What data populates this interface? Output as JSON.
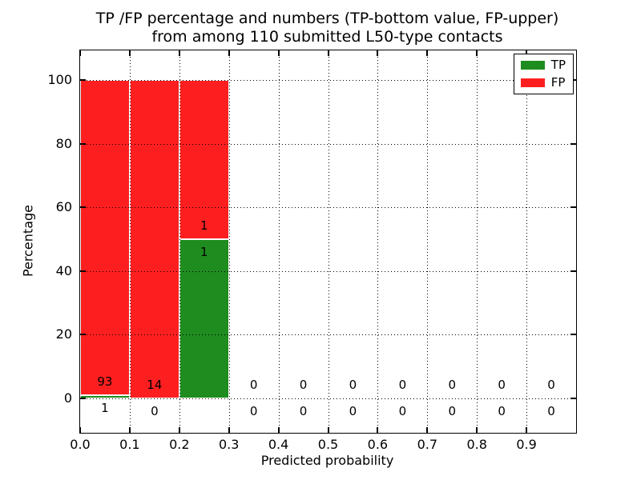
{
  "chart_data": {
    "type": "bar",
    "stacked": true,
    "title_line1": "TP /FP percentage and numbers (TP-bottom value, FP-upper)",
    "title_line2": "from among 110 submitted L50-type contacts",
    "xlabel": "Predicted probability",
    "ylabel": "Percentage",
    "xlim": [
      0,
      1
    ],
    "ylim": [
      -11,
      109
    ],
    "grid": true,
    "grid_style": "dotted",
    "legend_position": "upper right",
    "bin_width": 0.1,
    "total_submitted": 110,
    "series": [
      {
        "name": "TP",
        "color": "#1E8C1E"
      },
      {
        "name": "FP",
        "color": "#FD1F1F"
      }
    ],
    "yticks": {
      "values": [
        0,
        20,
        40,
        60,
        80,
        100
      ],
      "labels": [
        "0",
        "20",
        "40",
        "60",
        "80",
        "100"
      ]
    },
    "xticks": {
      "values": [
        0,
        0.1,
        0.2,
        0.3,
        0.4,
        0.5,
        0.6,
        0.7,
        0.8,
        0.9
      ],
      "labels": [
        "0.0",
        "0.1",
        "0.2",
        "0.3",
        "0.4",
        "0.5",
        "0.6",
        "0.7",
        "0.8",
        "0.9"
      ]
    },
    "bins": [
      {
        "x0": 0.0,
        "x1": 0.1,
        "tp_count": 1,
        "fp_count": 93,
        "tp_pct": 1.06,
        "fp_pct": 98.94
      },
      {
        "x0": 0.1,
        "x1": 0.2,
        "tp_count": 0,
        "fp_count": 14,
        "tp_pct": 0,
        "fp_pct": 100
      },
      {
        "x0": 0.2,
        "x1": 0.3,
        "tp_count": 1,
        "fp_count": 1,
        "tp_pct": 50,
        "fp_pct": 50
      },
      {
        "x0": 0.3,
        "x1": 0.4,
        "tp_count": 0,
        "fp_count": 0,
        "tp_pct": 0,
        "fp_pct": 0
      },
      {
        "x0": 0.4,
        "x1": 0.5,
        "tp_count": 0,
        "fp_count": 0,
        "tp_pct": 0,
        "fp_pct": 0
      },
      {
        "x0": 0.5,
        "x1": 0.6,
        "tp_count": 0,
        "fp_count": 0,
        "tp_pct": 0,
        "fp_pct": 0
      },
      {
        "x0": 0.6,
        "x1": 0.7,
        "tp_count": 0,
        "fp_count": 0,
        "tp_pct": 0,
        "fp_pct": 0
      },
      {
        "x0": 0.7,
        "x1": 0.8,
        "tp_count": 0,
        "fp_count": 0,
        "tp_pct": 0,
        "fp_pct": 0
      },
      {
        "x0": 0.8,
        "x1": 0.9,
        "tp_count": 0,
        "fp_count": 0,
        "tp_pct": 0,
        "fp_pct": 0
      },
      {
        "x0": 0.9,
        "x1": 1.0,
        "tp_count": 0,
        "fp_count": 0,
        "tp_pct": 0,
        "fp_pct": 0
      }
    ]
  }
}
